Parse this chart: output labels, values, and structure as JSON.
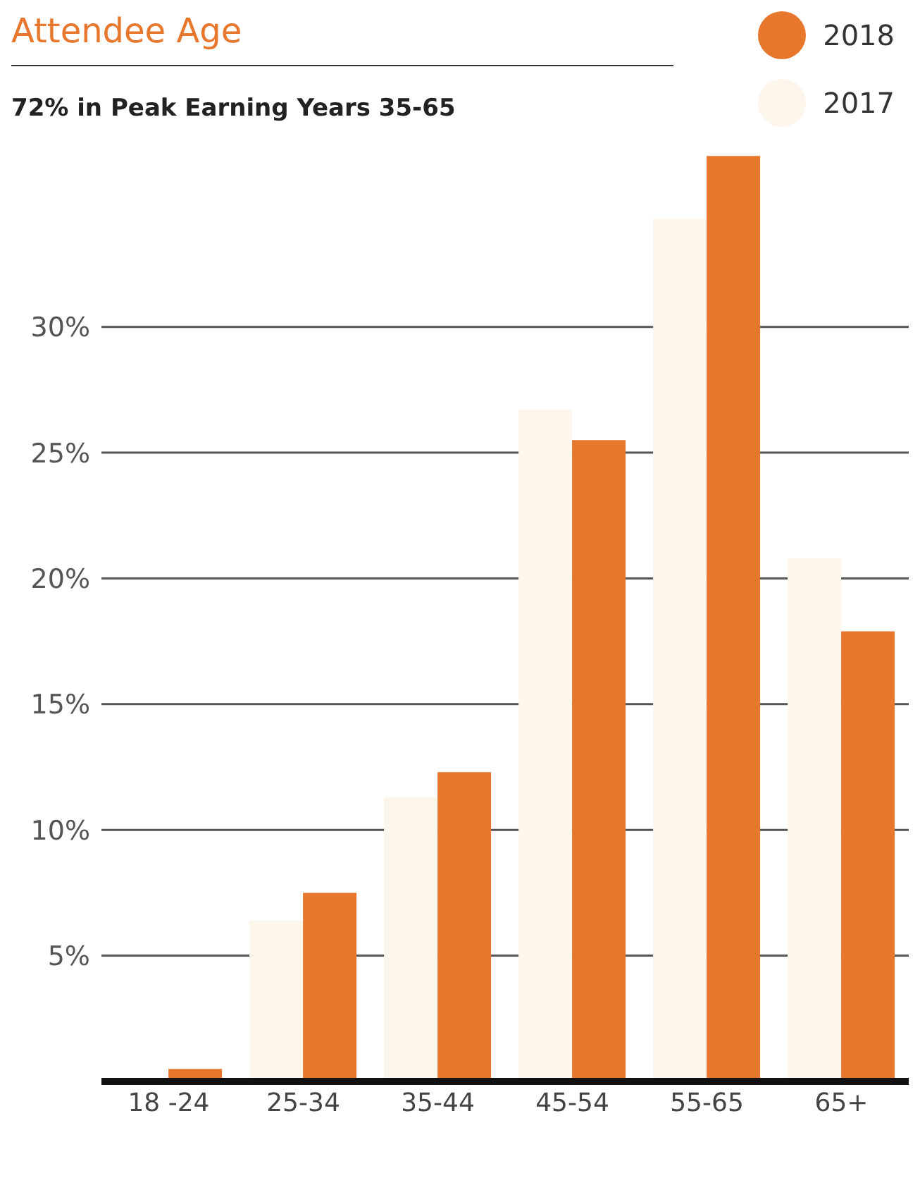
{
  "chart_data": {
    "type": "bar",
    "title": "Attendee Age",
    "subtitle": "72% in Peak Earning Years 35-65",
    "categories": [
      "18 -24",
      "25-34",
      "35-44",
      "45-54",
      "55-65",
      "65+"
    ],
    "series": [
      {
        "name": "2017",
        "color": "#fcf6ec",
        "values": [
          null,
          6.4,
          11.3,
          26.7,
          34.3,
          20.8
        ]
      },
      {
        "name": "2018",
        "color": "#e8772e",
        "values": [
          0.5,
          7.5,
          12.3,
          25.5,
          36.8,
          17.9
        ]
      }
    ],
    "ylim": [
      0,
      37
    ],
    "yticks": [
      {
        "value": 5,
        "label": "5%"
      },
      {
        "value": 10,
        "label": "10%"
      },
      {
        "value": 15,
        "label": "15%"
      },
      {
        "value": 20,
        "label": "20%"
      },
      {
        "value": 25,
        "label": "25%"
      },
      {
        "value": 30,
        "label": "30%"
      }
    ],
    "grid": "y",
    "legend": "top right"
  }
}
